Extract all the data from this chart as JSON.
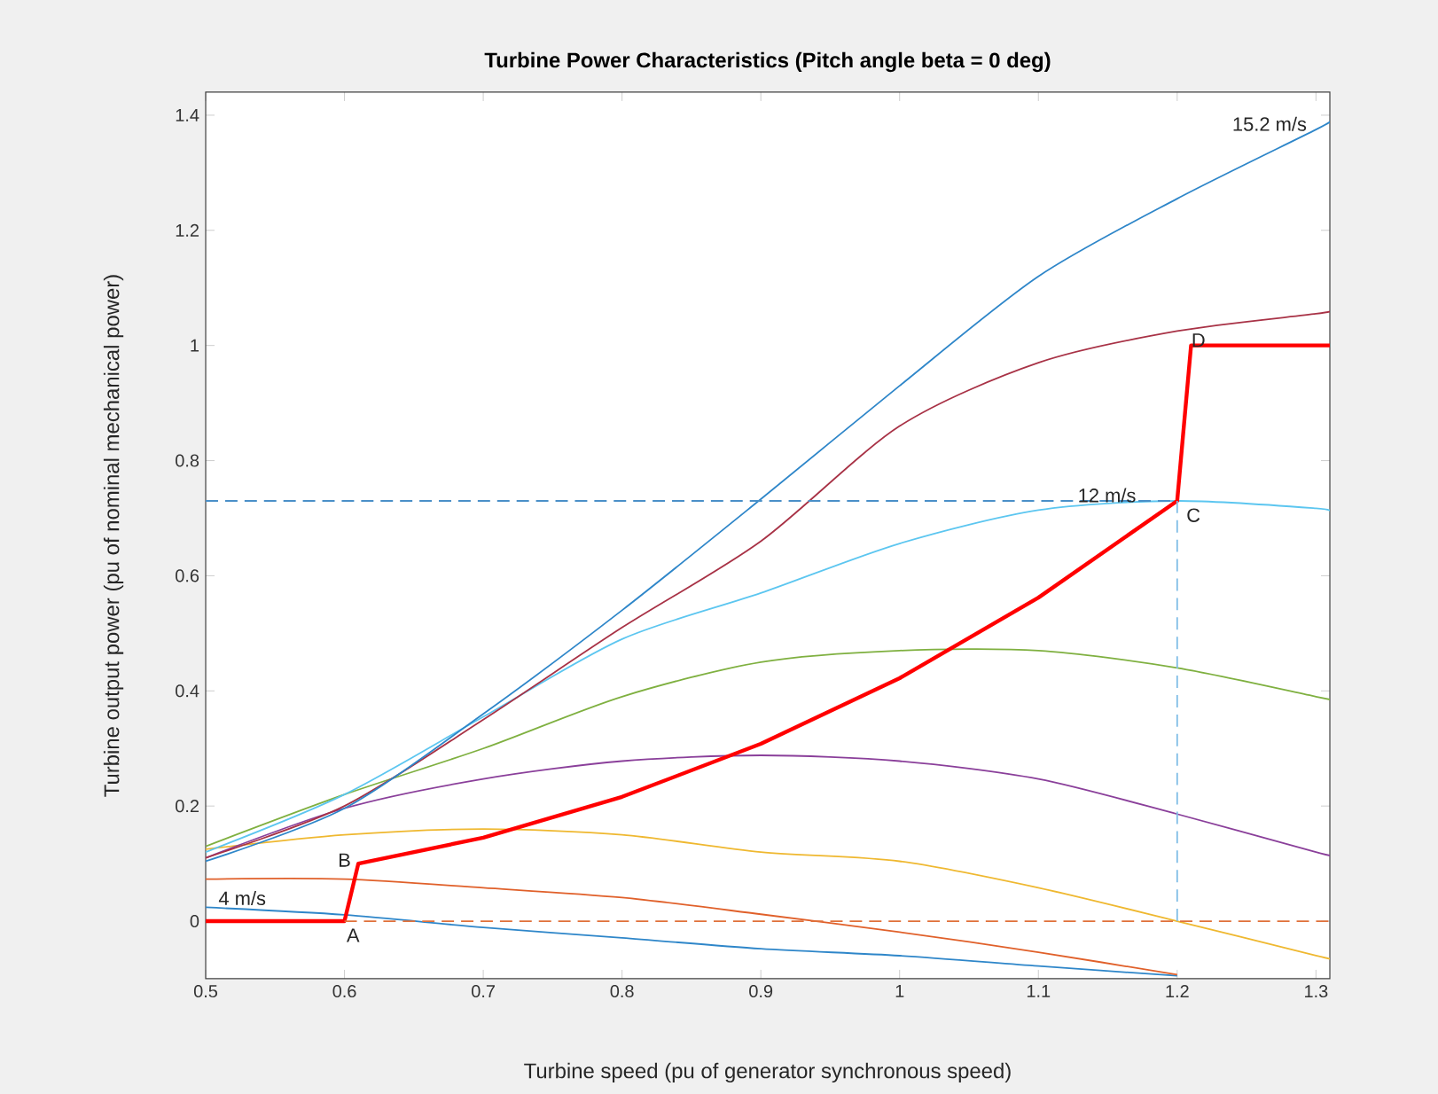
{
  "chart_data": {
    "type": "line",
    "title": "Turbine Power Characteristics (Pitch angle beta = 0 deg)",
    "xlabel": "Turbine speed (pu of generator synchronous speed)",
    "ylabel": "Turbine output power (pu of nominal mechanical power)",
    "x": [
      0.5,
      0.6,
      0.7,
      0.8,
      0.9,
      1.0,
      1.1,
      1.2,
      1.3,
      1.31
    ],
    "series": [
      {
        "color": "#2e86c9",
        "x": [
          0.5,
          0.6,
          0.7,
          0.8,
          0.9,
          1.0,
          1.1,
          1.2
        ],
        "values": [
          0.024,
          0.011,
          -0.011,
          -0.029,
          -0.048,
          -0.06,
          -0.078,
          -0.095
        ]
      },
      {
        "color": "#e0602a",
        "x": [
          0.5,
          0.6,
          0.7,
          0.8,
          0.9,
          1.0,
          1.1,
          1.2
        ],
        "values": [
          0.073,
          0.073,
          0.058,
          0.041,
          0.012,
          -0.019,
          -0.054,
          -0.093
        ]
      },
      {
        "color": "#efb830",
        "values": [
          0.125,
          0.15,
          0.16,
          0.15,
          0.12,
          0.104,
          0.058,
          0.0,
          -0.06,
          -0.065
        ]
      },
      {
        "color": "#8a3f9a",
        "values": [
          0.11,
          0.196,
          0.247,
          0.278,
          0.288,
          0.278,
          0.247,
          0.186,
          0.12,
          0.115
        ]
      },
      {
        "color": "#7fb040",
        "values": [
          0.13,
          0.22,
          0.3,
          0.39,
          0.45,
          0.47,
          0.47,
          0.44,
          0.39,
          0.385
        ]
      },
      {
        "color": "#5cc6f0",
        "values": [
          0.12,
          0.22,
          0.355,
          0.49,
          0.57,
          0.656,
          0.714,
          0.73,
          0.717,
          0.71
        ]
      },
      {
        "color": "#a83246",
        "values": [
          0.11,
          0.2,
          0.35,
          0.51,
          0.66,
          0.86,
          0.97,
          1.025,
          1.055,
          1.06
        ]
      },
      {
        "color": "#2e86c9",
        "values": [
          0.104,
          0.196,
          0.36,
          0.54,
          0.733,
          0.93,
          1.12,
          1.255,
          1.375,
          1.39
        ]
      },
      {
        "color": "#ff0000",
        "x": [
          0.5,
          0.6,
          0.61,
          0.7,
          0.8,
          0.9,
          1.0,
          1.1,
          1.2,
          1.21,
          1.31
        ],
        "values": [
          0,
          0,
          0.1,
          0.145,
          0.216,
          0.308,
          0.422,
          0.562,
          0.73,
          1.0,
          1.0
        ]
      },
      {
        "color": "#4a90c8",
        "line_style": "dashed",
        "x": [
          0.5,
          1.2
        ],
        "values": [
          0.73,
          0.73
        ]
      },
      {
        "color": "#80bde6",
        "line_style": "dashed",
        "x": [
          1.2,
          1.2
        ],
        "values": [
          0,
          0.73
        ]
      },
      {
        "color": "#e0703a",
        "line_style": "dashed",
        "x": [
          0.6,
          1.31
        ],
        "values": [
          0,
          0
        ]
      }
    ],
    "annotations": [
      {
        "text": "4 m/s",
        "x": 0.5,
        "y": 0.024
      },
      {
        "text": "12 m/s",
        "x": 1.2,
        "y": 0.73
      },
      {
        "text": "15.2 m/s",
        "x": 1.3,
        "y": 1.375
      },
      {
        "text": "A",
        "x": 0.6,
        "y": 0
      },
      {
        "text": "B",
        "x": 0.61,
        "y": 0.1
      },
      {
        "text": "C",
        "x": 1.2,
        "y": 0.73
      },
      {
        "text": "D",
        "x": 1.21,
        "y": 1.0
      }
    ],
    "xlim": [
      0.5,
      1.31
    ],
    "ylim": [
      -0.1,
      1.44
    ],
    "xticks": [
      0.5,
      0.6,
      0.7,
      0.8,
      0.9,
      1,
      1.1,
      1.2,
      1.3
    ],
    "yticks": [
      0,
      0.2,
      0.4,
      0.6,
      0.8,
      1,
      1.2,
      1.4
    ]
  }
}
